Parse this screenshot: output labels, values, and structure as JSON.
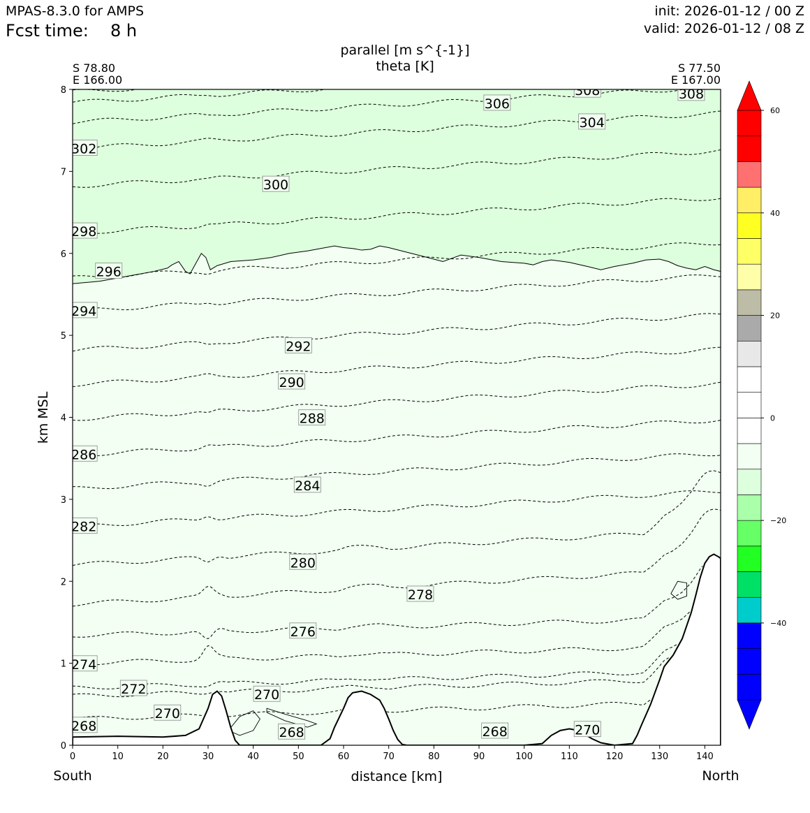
{
  "header": {
    "model": "MPAS-8.3.0 for AMPS",
    "fcst_label": "Fcst time:",
    "fcst_value": "8 h",
    "init": "init: 2026-01-12 / 00 Z",
    "valid": "valid: 2026-01-12 / 08 Z"
  },
  "chart_data": {
    "type": "cross-section contour",
    "title_line1": "parallel [m s^{-1}]",
    "title_line2": "theta [K]",
    "start_point": {
      "lat": "S 78.80",
      "lon": "E 166.00"
    },
    "end_point": {
      "lat": "S 77.50",
      "lon": "E 167.00"
    },
    "xlabel": "distance [km]",
    "ylabel": "km MSL",
    "x_left_label": "South",
    "x_right_label": "North",
    "xlim": [
      0,
      143.5
    ],
    "ylim": [
      0,
      8
    ],
    "xticks": [
      0,
      10,
      20,
      30,
      40,
      50,
      60,
      70,
      80,
      90,
      100,
      110,
      120,
      130,
      140
    ],
    "yticks": [
      0,
      1,
      2,
      3,
      4,
      5,
      6,
      7,
      8
    ],
    "colorbar": {
      "min": -55,
      "max": 60,
      "ticks": [
        60,
        40,
        20,
        0,
        -20,
        -40
      ],
      "tick_labels": [
        "60",
        "40",
        "20",
        "0",
        "−20",
        "−40"
      ],
      "levels": [
        {
          "from": -55,
          "to": -50,
          "color": "#0000ff"
        },
        {
          "from": -50,
          "to": -45,
          "color": "#0000ff"
        },
        {
          "from": -45,
          "to": -40,
          "color": "#0000ff"
        },
        {
          "from": -40,
          "to": -35,
          "color": "#00cccc"
        },
        {
          "from": -35,
          "to": -30,
          "color": "#00e066"
        },
        {
          "from": -30,
          "to": -25,
          "color": "#22ff22"
        },
        {
          "from": -25,
          "to": -20,
          "color": "#66ff66"
        },
        {
          "from": -20,
          "to": -15,
          "color": "#aaffaa"
        },
        {
          "from": -15,
          "to": -10,
          "color": "#ddffdd"
        },
        {
          "from": -10,
          "to": -5,
          "color": "#f2fff2"
        },
        {
          "from": -5,
          "to": 0,
          "color": "#ffffff"
        },
        {
          "from": 0,
          "to": 5,
          "color": "#ffffff"
        },
        {
          "from": 5,
          "to": 10,
          "color": "#ffffff"
        },
        {
          "from": 10,
          "to": 15,
          "color": "#e8e8e8"
        },
        {
          "from": 15,
          "to": 20,
          "color": "#aaaaaa"
        },
        {
          "from": 20,
          "to": 25,
          "color": "#bdbca6"
        },
        {
          "from": 25,
          "to": 30,
          "color": "#ffffaa"
        },
        {
          "from": 30,
          "to": 35,
          "color": "#ffff66"
        },
        {
          "from": 35,
          "to": 40,
          "color": "#ffff22"
        },
        {
          "from": 40,
          "to": 45,
          "color": "#ffee66"
        },
        {
          "from": 45,
          "to": 50,
          "color": "#ff7070"
        },
        {
          "from": 50,
          "to": 55,
          "color": "#ff0000"
        },
        {
          "from": 55,
          "to": 60,
          "color": "#ff0000"
        },
        {
          "from": 60,
          "to": 65,
          "color": "#ff0000"
        }
      ]
    },
    "shading": [
      {
        "name": "upper-band",
        "value_range": "-15 to -10",
        "color": "#ddffdd"
      },
      {
        "name": "lower-band",
        "value_range": "-10 to -5",
        "color": "#f2fff2"
      }
    ],
    "shading_boundary_km": [
      [
        0,
        5.63
      ],
      [
        6,
        5.66
      ],
      [
        12,
        5.72
      ],
      [
        18,
        5.78
      ],
      [
        21,
        5.82
      ],
      [
        22,
        5.86
      ],
      [
        23.5,
        5.9
      ],
      [
        25,
        5.78
      ],
      [
        26,
        5.75
      ],
      [
        27.5,
        5.9
      ],
      [
        28.5,
        6.0
      ],
      [
        29.5,
        5.95
      ],
      [
        30.5,
        5.8
      ],
      [
        32,
        5.85
      ],
      [
        35,
        5.9
      ],
      [
        40,
        5.92
      ],
      [
        44,
        5.95
      ],
      [
        48,
        6.0
      ],
      [
        52,
        6.03
      ],
      [
        56,
        6.07
      ],
      [
        58,
        6.09
      ],
      [
        60,
        6.07
      ],
      [
        62,
        6.06
      ],
      [
        64,
        6.04
      ],
      [
        66,
        6.05
      ],
      [
        68,
        6.09
      ],
      [
        70,
        6.07
      ],
      [
        75,
        6.0
      ],
      [
        80,
        5.93
      ],
      [
        82,
        5.9
      ],
      [
        84,
        5.94
      ],
      [
        86,
        5.98
      ],
      [
        90,
        5.95
      ],
      [
        95,
        5.9
      ],
      [
        100,
        5.88
      ],
      [
        102,
        5.86
      ],
      [
        104,
        5.9
      ],
      [
        106,
        5.92
      ],
      [
        110,
        5.89
      ],
      [
        114,
        5.84
      ],
      [
        117,
        5.8
      ],
      [
        120,
        5.84
      ],
      [
        124,
        5.88
      ],
      [
        127,
        5.92
      ],
      [
        130,
        5.93
      ],
      [
        132,
        5.9
      ],
      [
        134,
        5.85
      ],
      [
        136,
        5.82
      ],
      [
        138,
        5.8
      ],
      [
        140,
        5.84
      ],
      [
        142,
        5.8
      ],
      [
        143.5,
        5.78
      ]
    ],
    "terrain_km": [
      [
        0,
        0.1
      ],
      [
        10,
        0.11
      ],
      [
        20,
        0.1
      ],
      [
        25,
        0.12
      ],
      [
        28,
        0.2
      ],
      [
        30,
        0.45
      ],
      [
        31,
        0.62
      ],
      [
        32,
        0.66
      ],
      [
        33,
        0.6
      ],
      [
        34,
        0.42
      ],
      [
        35,
        0.22
      ],
      [
        36,
        0.06
      ],
      [
        37,
        0.0
      ],
      [
        55,
        0.0
      ],
      [
        57,
        0.08
      ],
      [
        58,
        0.22
      ],
      [
        60,
        0.45
      ],
      [
        61,
        0.58
      ],
      [
        62,
        0.64
      ],
      [
        64,
        0.66
      ],
      [
        66,
        0.62
      ],
      [
        68,
        0.55
      ],
      [
        69,
        0.45
      ],
      [
        70,
        0.32
      ],
      [
        71,
        0.18
      ],
      [
        72,
        0.07
      ],
      [
        73,
        0.01
      ],
      [
        74,
        0.0
      ],
      [
        100,
        0.0
      ],
      [
        104,
        0.02
      ],
      [
        106,
        0.12
      ],
      [
        108,
        0.18
      ],
      [
        110,
        0.2
      ],
      [
        112,
        0.18
      ],
      [
        115,
        0.08
      ],
      [
        117,
        0.03
      ],
      [
        120,
        0.0
      ],
      [
        124,
        0.02
      ],
      [
        125,
        0.12
      ],
      [
        126,
        0.25
      ],
      [
        128,
        0.5
      ],
      [
        130,
        0.8
      ],
      [
        131,
        0.96
      ],
      [
        133,
        1.1
      ],
      [
        135,
        1.3
      ],
      [
        137,
        1.62
      ],
      [
        138,
        1.83
      ],
      [
        139,
        2.05
      ],
      [
        140,
        2.22
      ],
      [
        141,
        2.3
      ],
      [
        142,
        2.33
      ],
      [
        143,
        2.3
      ],
      [
        143.5,
        2.28
      ]
    ],
    "theta_contours": [
      {
        "value": 268,
        "label": "268",
        "base_km": 0.32,
        "amp": 0.0,
        "label_at_km": [
          [
            2.5,
            0.24
          ],
          [
            48.5,
            0.16
          ],
          [
            93.5,
            0.17
          ]
        ]
      },
      {
        "value": 270,
        "label": "270",
        "base_km": 0.6,
        "amp": 0.0,
        "label_at_km": [
          [
            21,
            0.39
          ],
          [
            43,
            0.62
          ],
          [
            114,
            0.19
          ]
        ]
      },
      {
        "value": 272,
        "label": "272",
        "base_km": 0.7,
        "amp": 0.02,
        "label_at_km": [
          [
            13.5,
            0.69
          ]
        ]
      },
      {
        "value": 274,
        "label": "274",
        "base_km": 1.0,
        "amp": 0.15,
        "label_at_km": [
          [
            2.5,
            0.99
          ]
        ]
      },
      {
        "value": 276,
        "label": "276",
        "base_km": 1.34,
        "amp": 0.12,
        "label_at_km": [
          [
            51,
            1.39
          ]
        ]
      },
      {
        "value": 278,
        "label": "278",
        "base_km": 1.72,
        "amp": 0.1,
        "label_at_km": [
          [
            77,
            1.84
          ]
        ]
      },
      {
        "value": 280,
        "label": "280",
        "base_km": 2.2,
        "amp": 0.06,
        "label_at_km": [
          [
            51,
            2.23
          ]
        ]
      },
      {
        "value": 282,
        "label": "282",
        "base_km": 2.67,
        "amp": 0.05,
        "label_at_km": [
          [
            2.5,
            2.67
          ]
        ]
      },
      {
        "value": 284,
        "label": "284",
        "base_km": 3.13,
        "amp": 0.04,
        "label_at_km": [
          [
            52,
            3.17
          ]
        ]
      },
      {
        "value": 286,
        "label": "286",
        "base_km": 3.54,
        "amp": 0.03,
        "label_at_km": [
          [
            2.5,
            3.55
          ]
        ]
      },
      {
        "value": 288,
        "label": "288",
        "base_km": 3.98,
        "amp": 0.03,
        "label_at_km": [
          [
            53,
            3.99
          ]
        ]
      },
      {
        "value": 290,
        "label": "290",
        "base_km": 4.4,
        "amp": 0.02,
        "label_at_km": [
          [
            48.5,
            4.43
          ]
        ]
      },
      {
        "value": 292,
        "label": "292",
        "base_km": 4.82,
        "amp": 0.02,
        "label_at_km": [
          [
            50,
            4.87
          ]
        ]
      },
      {
        "value": 294,
        "label": "294",
        "base_km": 5.3,
        "amp": 0.02,
        "label_at_km": [
          [
            2.5,
            5.3
          ]
        ]
      },
      {
        "value": 296,
        "label": "296",
        "base_km": 5.7,
        "amp": 0.02,
        "label_at_km": [
          [
            8,
            5.78
          ]
        ]
      },
      {
        "value": 298,
        "label": "298",
        "base_km": 6.25,
        "amp": 0.02,
        "label_at_km": [
          [
            2.5,
            6.27
          ]
        ]
      },
      {
        "value": 300,
        "label": "300",
        "base_km": 6.82,
        "amp": 0.01,
        "label_at_km": [
          [
            45,
            6.84
          ]
        ]
      },
      {
        "value": 302,
        "label": "302",
        "base_km": 7.28,
        "amp": 0.01,
        "label_at_km": [
          [
            2.5,
            7.28
          ]
        ]
      },
      {
        "value": 304,
        "label": "304",
        "base_km": 7.6,
        "amp": 0.01,
        "label_at_km": [
          [
            115,
            7.6
          ]
        ]
      },
      {
        "value": 306,
        "label": "306",
        "base_km": 7.84,
        "amp": 0.01,
        "label_at_km": [
          [
            94,
            7.83
          ]
        ]
      },
      {
        "value": 308,
        "label": "308",
        "base_km": 7.97,
        "amp": 0.01,
        "label_at_km": [
          [
            114,
            7.99
          ],
          [
            137,
            7.95
          ]
        ]
      }
    ]
  }
}
